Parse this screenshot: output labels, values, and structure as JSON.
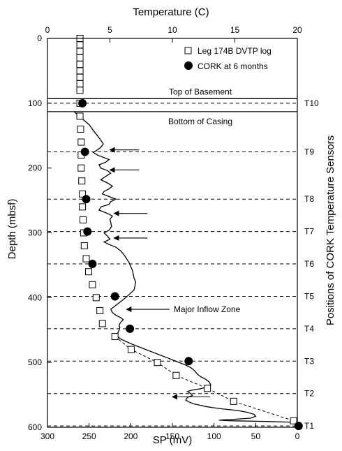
{
  "chart_data": {
    "type": "line",
    "title": "",
    "top_axis": {
      "label": "Temperature (C)",
      "range": [
        0,
        20
      ],
      "ticks": [
        "0",
        "5",
        "10",
        "15",
        "20"
      ],
      "tick_values": [
        0,
        5,
        10,
        15,
        20
      ]
    },
    "bottom_axis": {
      "label": "SP (mV)",
      "range": [
        300,
        0
      ],
      "ticks": [
        "300",
        "250",
        "200",
        "150",
        "100",
        "50",
        "0"
      ],
      "tick_values": [
        300,
        250,
        200,
        150,
        100,
        50,
        0
      ]
    },
    "left_axis": {
      "label": "Depth (mbsf)",
      "range": [
        0,
        600
      ],
      "inverted": true,
      "ticks": [
        "0",
        "100",
        "200",
        "300",
        "400",
        "500",
        "600"
      ],
      "tick_values": [
        0,
        100,
        200,
        300,
        400,
        500,
        600
      ]
    },
    "right_axis": {
      "label": "Positions of CORK Temperature Sensors"
    },
    "legend": {
      "placement": "top-right",
      "items": [
        {
          "label": "Leg 174B DVTP log",
          "marker": "open-square"
        },
        {
          "label": "CORK at 6 months",
          "marker": "filled-circle"
        }
      ]
    },
    "horizontal_lines": [
      {
        "depth": 93,
        "style": "solid",
        "label": "Top of Basement"
      },
      {
        "depth": 113,
        "style": "solid",
        "label": "Bottom of Casing"
      }
    ],
    "sensors": [
      {
        "name": "T10",
        "depth": 100
      },
      {
        "name": "T9",
        "depth": 175
      },
      {
        "name": "T8",
        "depth": 248
      },
      {
        "name": "T7",
        "depth": 298
      },
      {
        "name": "T6",
        "depth": 348
      },
      {
        "name": "T5",
        "depth": 398
      },
      {
        "name": "T4",
        "depth": 448
      },
      {
        "name": "T3",
        "depth": 498
      },
      {
        "name": "T2",
        "depth": 548
      },
      {
        "name": "T1",
        "depth": 598
      }
    ],
    "series": [
      {
        "name": "Leg 174B DVTP log",
        "axis": "temperature",
        "marker": "open-square",
        "line": "dashed-below-460",
        "points": [
          [
            2.6,
            0
          ],
          [
            2.6,
            10
          ],
          [
            2.6,
            20
          ],
          [
            2.6,
            30
          ],
          [
            2.6,
            40
          ],
          [
            2.6,
            50
          ],
          [
            2.6,
            60
          ],
          [
            2.6,
            70
          ],
          [
            2.6,
            80
          ],
          [
            2.6,
            100
          ],
          [
            2.6,
            120
          ],
          [
            2.65,
            140
          ],
          [
            2.7,
            160
          ],
          [
            2.7,
            180
          ],
          [
            2.7,
            200
          ],
          [
            2.75,
            220
          ],
          [
            2.8,
            240
          ],
          [
            2.8,
            260
          ],
          [
            2.85,
            280
          ],
          [
            2.9,
            300
          ],
          [
            2.95,
            320
          ],
          [
            3.1,
            340
          ],
          [
            3.3,
            360
          ],
          [
            3.6,
            380
          ],
          [
            3.9,
            400
          ],
          [
            4.2,
            420
          ],
          [
            4.4,
            440
          ],
          [
            5.4,
            460
          ],
          [
            6.7,
            480
          ],
          [
            8.8,
            500
          ],
          [
            10.3,
            520
          ],
          [
            12.8,
            540
          ],
          [
            14.9,
            560
          ],
          [
            19.7,
            590
          ]
        ]
      },
      {
        "name": "CORK at 6 months",
        "axis": "temperature",
        "marker": "filled-circle",
        "points": [
          [
            2.8,
            100
          ],
          [
            3.0,
            175
          ],
          [
            3.1,
            248
          ],
          [
            3.2,
            298
          ],
          [
            3.6,
            348
          ],
          [
            5.4,
            398
          ],
          [
            6.6,
            448
          ],
          [
            11.3,
            498
          ],
          [
            20.1,
            598
          ]
        ]
      },
      {
        "name": "SP log",
        "axis": "sp",
        "line": "solid",
        "points": [
          [
            268,
            113
          ],
          [
            262,
            120
          ],
          [
            250,
            133
          ],
          [
            245,
            142
          ],
          [
            240,
            150
          ],
          [
            236,
            157
          ],
          [
            233,
            163
          ],
          [
            236,
            168
          ],
          [
            240,
            172
          ],
          [
            245,
            176
          ],
          [
            240,
            180
          ],
          [
            232,
            184
          ],
          [
            226,
            187
          ],
          [
            230,
            191
          ],
          [
            238,
            195
          ],
          [
            236,
            200
          ],
          [
            228,
            204
          ],
          [
            224,
            208
          ],
          [
            230,
            213
          ],
          [
            236,
            218
          ],
          [
            228,
            223
          ],
          [
            222,
            228
          ],
          [
            226,
            232
          ],
          [
            232,
            236
          ],
          [
            234,
            240
          ],
          [
            226,
            244
          ],
          [
            218,
            248
          ],
          [
            224,
            252
          ],
          [
            226,
            256
          ],
          [
            236,
            260
          ],
          [
            238,
            265
          ],
          [
            228,
            270
          ],
          [
            222,
            274
          ],
          [
            225,
            279
          ],
          [
            224,
            284
          ],
          [
            223,
            290
          ],
          [
            226,
            296
          ],
          [
            232,
            300
          ],
          [
            228,
            305
          ],
          [
            225,
            310
          ],
          [
            232,
            314
          ],
          [
            226,
            318
          ],
          [
            218,
            322
          ],
          [
            212,
            328
          ],
          [
            208,
            334
          ],
          [
            205,
            340
          ],
          [
            202,
            346
          ],
          [
            200,
            352
          ],
          [
            198,
            358
          ],
          [
            197,
            364
          ],
          [
            196,
            370
          ],
          [
            194,
            376
          ],
          [
            195,
            382
          ],
          [
            196,
            388
          ],
          [
            201,
            394
          ],
          [
            206,
            400
          ],
          [
            212,
            406
          ],
          [
            218,
            412
          ],
          [
            224,
            418
          ],
          [
            222,
            423
          ],
          [
            218,
            427
          ],
          [
            212,
            431
          ],
          [
            209,
            434
          ],
          [
            212,
            438
          ],
          [
            214,
            442
          ],
          [
            213,
            446
          ],
          [
            214,
            450
          ],
          [
            216,
            456
          ],
          [
            216,
            460
          ],
          [
            212,
            464
          ],
          [
            205,
            468
          ],
          [
            198,
            472
          ],
          [
            190,
            476
          ],
          [
            182,
            480
          ],
          [
            174,
            484
          ],
          [
            166,
            488
          ],
          [
            158,
            492
          ],
          [
            150,
            496
          ],
          [
            142,
            500
          ],
          [
            134,
            504
          ],
          [
            128,
            508
          ],
          [
            124,
            512
          ],
          [
            120,
            518
          ],
          [
            116,
            522
          ],
          [
            110,
            526
          ],
          [
            106,
            530
          ],
          [
            104,
            534
          ],
          [
            108,
            538
          ],
          [
            118,
            541
          ],
          [
            128,
            543
          ],
          [
            132,
            545
          ],
          [
            128,
            548
          ],
          [
            126,
            551
          ],
          [
            132,
            554
          ],
          [
            134,
            558
          ],
          [
            130,
            561
          ],
          [
            124,
            564
          ],
          [
            117,
            566
          ],
          [
            110,
            568
          ],
          [
            100,
            570
          ],
          [
            88,
            572
          ],
          [
            72,
            574
          ],
          [
            60,
            577
          ],
          [
            52,
            580
          ],
          [
            50,
            583
          ],
          [
            56,
            586
          ],
          [
            80,
            588
          ],
          [
            94,
            589
          ],
          [
            80,
            590
          ],
          [
            40,
            591
          ],
          [
            10,
            592
          ],
          [
            2,
            593
          ]
        ]
      }
    ],
    "annotations": [
      {
        "text": "Major Inflow Zone",
        "depth": 418,
        "sp": 140,
        "arrow_to_sp": 205
      },
      {
        "arrow_from_sp": 190,
        "arrow_to_sp": 225,
        "depth": 172
      },
      {
        "arrow_from_sp": 190,
        "arrow_to_sp": 225,
        "depth": 203
      },
      {
        "arrow_from_sp": 180,
        "arrow_to_sp": 220,
        "depth": 270
      },
      {
        "arrow_from_sp": 180,
        "arrow_to_sp": 220,
        "depth": 308
      },
      {
        "arrow_from_sp": 105,
        "arrow_to_sp": 150,
        "depth": 553
      }
    ]
  }
}
